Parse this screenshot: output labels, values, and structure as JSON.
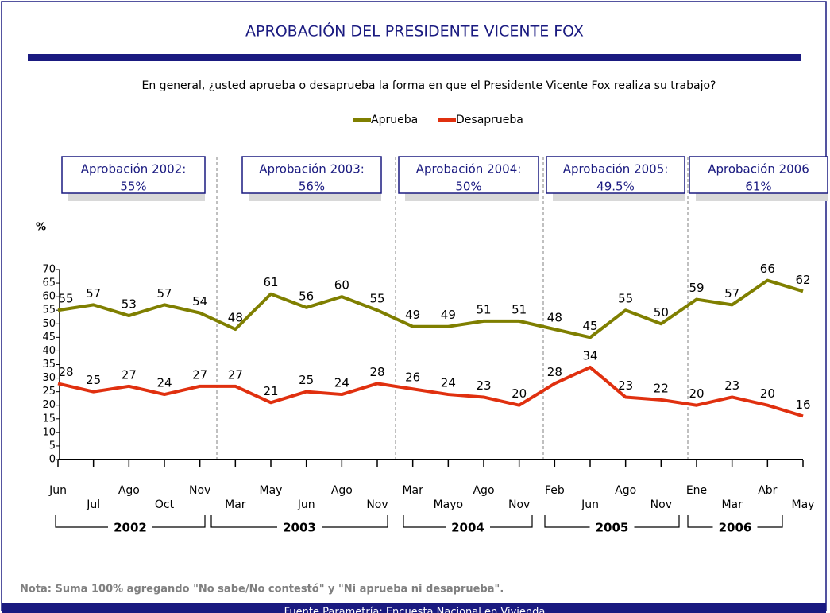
{
  "chart_data": {
    "type": "line",
    "title": "APROBACIÓN DEL PRESIDENTE VICENTE FOX",
    "subtitle": "En general, ¿usted aprueba o desaprueba la forma en que el Presidente Vicente Fox  realiza su trabajo?",
    "y_label": "%",
    "categories": [
      "Jun",
      "Jul",
      "Ago",
      "Oct",
      "Nov",
      "Mar",
      "May",
      "Jun",
      "Ago",
      "Nov",
      "Mar",
      "Mayo",
      "Ago",
      "Nov",
      "Feb",
      "Jun",
      "Ago",
      "Nov",
      "Ene",
      "Mar",
      "Abr",
      "May"
    ],
    "series": [
      {
        "name": "Aprueba",
        "color": "#7f7f00",
        "values": [
          55,
          57,
          53,
          57,
          54,
          48,
          61,
          56,
          60,
          55,
          49,
          49,
          51,
          51,
          48,
          45,
          55,
          50,
          59,
          57,
          66,
          62
        ]
      },
      {
        "name": "Desaprueba",
        "color": "#e0300f",
        "values": [
          28,
          25,
          27,
          24,
          27,
          27,
          21,
          25,
          24,
          28,
          26,
          24,
          23,
          20,
          28,
          34,
          23,
          22,
          20,
          23,
          20,
          16
        ]
      }
    ],
    "ylim": [
      0,
      70
    ],
    "yticks": [
      0,
      5,
      10,
      15,
      20,
      25,
      30,
      35,
      40,
      45,
      50,
      55,
      60,
      65,
      70
    ],
    "years": [
      "2002",
      "2003",
      "2004",
      "2005",
      "2006"
    ],
    "annotations": [
      {
        "label": "Aprobación 2002:",
        "value": "55%"
      },
      {
        "label": "Aprobación 2003:",
        "value": "56%"
      },
      {
        "label": "Aprobación 2004:",
        "value": "50%"
      },
      {
        "label": "Aprobación 2005:",
        "value": "49.5%"
      },
      {
        "label": "Aprobación 2006",
        "value": "61%"
      }
    ],
    "note": "Nota: Suma 100% agregando  \"No sabe/No contestó\" y \"Ni aprueba ni desaprueba\".",
    "source": "Fuente Parametría: Encuesta Nacional en Vivienda"
  }
}
